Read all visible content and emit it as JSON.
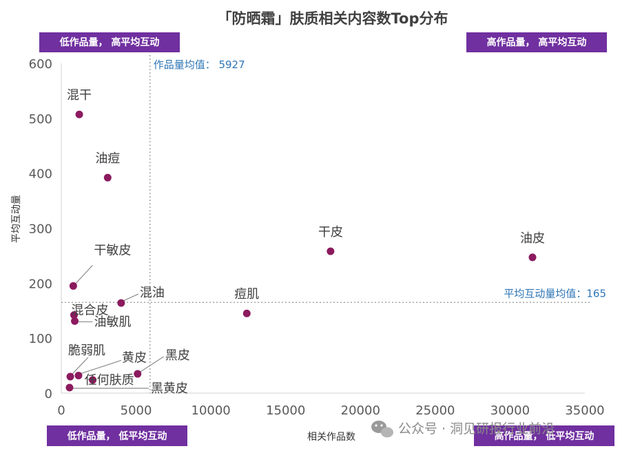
{
  "chart_data": {
    "type": "scatter",
    "title": "「防晒霜」肤质相关内容数Top分布",
    "xlabel": "相关作品数",
    "ylabel": "平均互动量",
    "xlim": [
      0,
      35000
    ],
    "ylim": [
      0,
      600
    ],
    "xticks": [
      "0",
      "5000",
      "10000",
      "15000",
      "20000",
      "25000",
      "30000",
      "35000"
    ],
    "yticks": [
      "0",
      "100",
      "200",
      "300",
      "400",
      "500",
      "600"
    ],
    "points": [
      {
        "label": "混干",
        "x": 1200,
        "y": 507
      },
      {
        "label": "油痘",
        "x": 3100,
        "y": 392
      },
      {
        "label": "干敏皮",
        "x": 800,
        "y": 195
      },
      {
        "label": "混油",
        "x": 4000,
        "y": 164
      },
      {
        "label": "混合皮",
        "x": 850,
        "y": 142
      },
      {
        "label": "油敏肌",
        "x": 900,
        "y": 131
      },
      {
        "label": "脆弱肌",
        "x": 600,
        "y": 30
      },
      {
        "label": "黄皮",
        "x": 1150,
        "y": 32
      },
      {
        "label": "任何肤质",
        "x": 2100,
        "y": 24
      },
      {
        "label": "黑皮",
        "x": 5100,
        "y": 35
      },
      {
        "label": "黑黄皮",
        "x": 550,
        "y": 10
      },
      {
        "label": "痘肌",
        "x": 12400,
        "y": 145
      },
      {
        "label": "干皮",
        "x": 18000,
        "y": 258
      },
      {
        "label": "油皮",
        "x": 31500,
        "y": 247
      }
    ],
    "mean_x": {
      "value": 5927,
      "label": "作品量均值： 5927"
    },
    "mean_y": {
      "value": 165,
      "label": "平均互动量均值：165"
    },
    "quadrants": {
      "top_left": "低作品量， 高平均互动",
      "top_right": "高作品量， 高平均互动",
      "bottom_left": "低作品量， 低平均互动",
      "bottom_right": "高作品量， 低平均互动"
    },
    "marker_color": "#8b1a5e",
    "grid": false
  },
  "watermark": "公众号 · 洞见研报行业前沿"
}
